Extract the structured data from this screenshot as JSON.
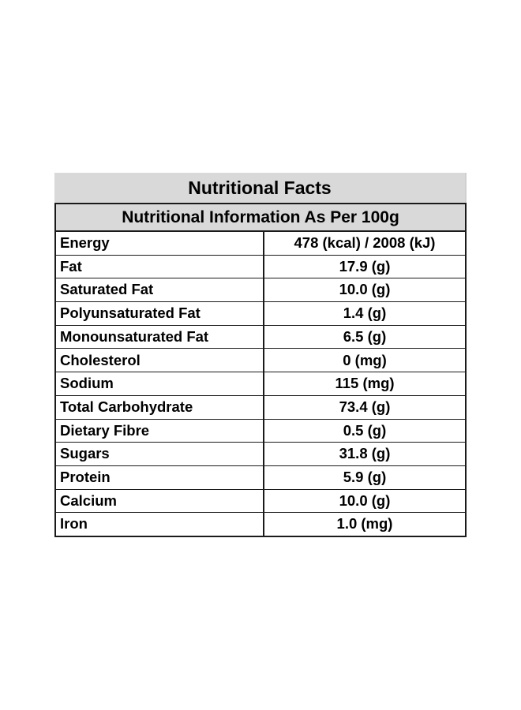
{
  "title": "Nutritional Facts",
  "subtitle": "Nutritional Information As Per 100g",
  "rows": [
    {
      "name": "Energy",
      "value": "478 (kcal) / 2008 (kJ)"
    },
    {
      "name": "Fat",
      "value": "17.9 (g)"
    },
    {
      "name": "Saturated Fat",
      "value": "10.0 (g)"
    },
    {
      "name": "Polyunsaturated Fat",
      "value": "1.4 (g)"
    },
    {
      "name": "Monounsaturated Fat",
      "value": "6.5 (g)"
    },
    {
      "name": "Cholesterol",
      "value": "0 (mg)"
    },
    {
      "name": "Sodium",
      "value": "115 (mg)"
    },
    {
      "name": "Total Carbohydrate",
      "value": "73.4 (g)"
    },
    {
      "name": "Dietary Fibre",
      "value": "0.5 (g)"
    },
    {
      "name": "Sugars",
      "value": "31.8 (g)"
    },
    {
      "name": "Protein",
      "value": "5.9 (g)"
    },
    {
      "name": "Calcium",
      "value": "10.0 (g)"
    },
    {
      "name": "Iron",
      "value": "1.0 (mg)"
    }
  ],
  "colors": {
    "header_background": "#d9d9d9",
    "border": "#1a1a1a",
    "text": "#000000"
  }
}
